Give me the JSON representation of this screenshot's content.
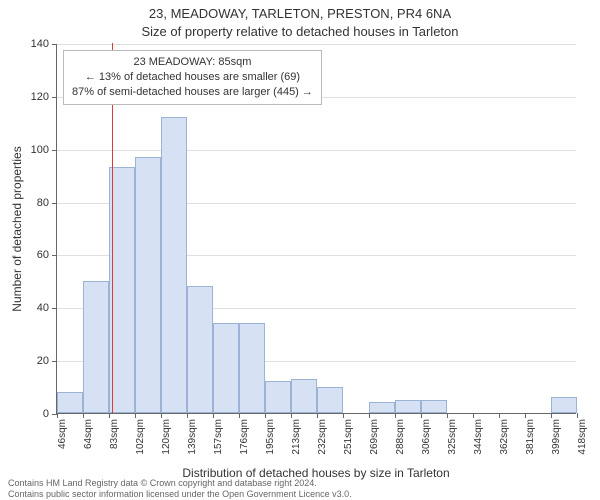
{
  "title_main": "23, MEADOWAY, TARLETON, PRESTON, PR4 6NA",
  "title_sub": "Size of property relative to detached houses in Tarleton",
  "y_axis_label": "Number of detached properties",
  "x_axis_label": "Distribution of detached houses by size in Tarleton",
  "annotation": {
    "line1": "23 MEADOWAY: 85sqm",
    "line2": "← 13% of detached houses are smaller (69)",
    "line3": "87% of semi-detached houses are larger (445) →"
  },
  "footer": {
    "line1": "Contains HM Land Registry data © Crown copyright and database right 2024.",
    "line2": "Contains public sector information licensed under the Open Government Licence v3.0."
  },
  "chart": {
    "type": "histogram",
    "bar_fill": "#d6e1f3",
    "bar_stroke": "#9db3d6",
    "bar_stroke_width": 1,
    "grid_color": "#e0e0e0",
    "axis_color": "#666666",
    "background_color": "#ffffff",
    "reference_line": {
      "x_value": 85,
      "color": "#d93b3b",
      "width": 1
    },
    "ylim": [
      0,
      140
    ],
    "yticks": [
      0,
      20,
      40,
      60,
      80,
      100,
      120,
      140
    ],
    "x_start": 46,
    "x_bin_width": 18.6,
    "x_tick_labels": [
      "46sqm",
      "64sqm",
      "83sqm",
      "102sqm",
      "120sqm",
      "139sqm",
      "157sqm",
      "176sqm",
      "195sqm",
      "213sqm",
      "232sqm",
      "251sqm",
      "269sqm",
      "288sqm",
      "306sqm",
      "325sqm",
      "344sqm",
      "362sqm",
      "381sqm",
      "399sqm",
      "418sqm"
    ],
    "bar_values": [
      8,
      50,
      93,
      97,
      112,
      48,
      34,
      34,
      12,
      13,
      10,
      0,
      4,
      5,
      5,
      0,
      0,
      0,
      0,
      6
    ],
    "label_fontsize": 12,
    "tick_fontsize": 11
  }
}
